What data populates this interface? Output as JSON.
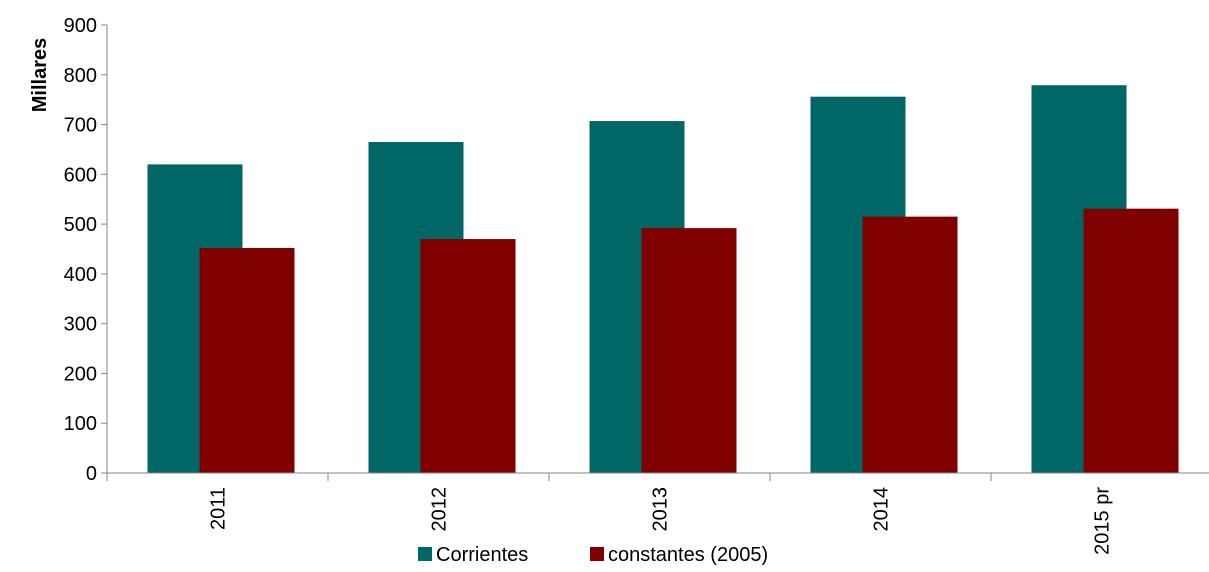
{
  "chart_data": {
    "type": "bar",
    "title": "",
    "xlabel": "",
    "ylabel": "Millares",
    "categories": [
      "2011",
      "2012",
      "2013",
      "2014",
      "2015 pr"
    ],
    "series": [
      {
        "name": "Corrientes",
        "color": "#006666",
        "values": [
          620,
          665,
          707,
          756,
          779
        ]
      },
      {
        "name": "constantes (2005)",
        "color": "#800000",
        "values": [
          452,
          470,
          492,
          515,
          531
        ]
      }
    ],
    "ylim": [
      0,
      900
    ],
    "yticks": [
      0,
      100,
      200,
      300,
      400,
      500,
      600,
      700,
      800,
      900
    ],
    "grid": false,
    "legend": "bottom"
  }
}
